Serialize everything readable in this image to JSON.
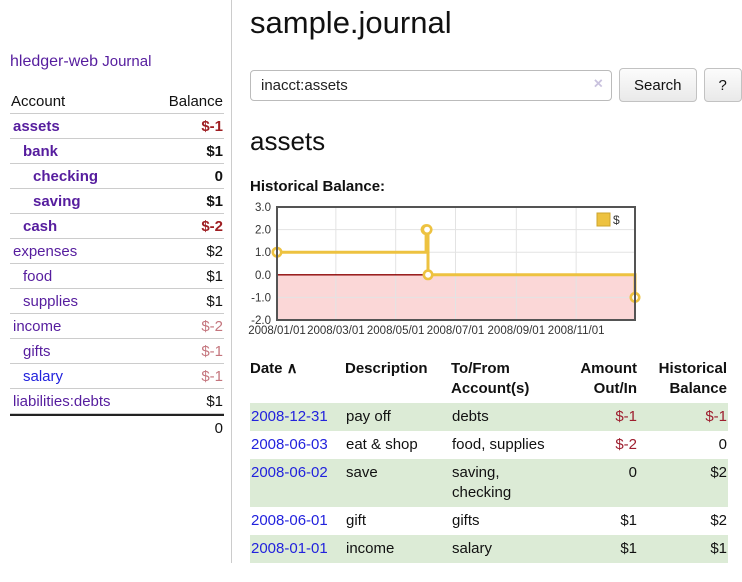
{
  "app": {
    "brand": "hledger-web"
  },
  "sidebar": {
    "journal_link": "Journal",
    "accounts_table": {
      "headers": {
        "account": "Account",
        "balance": "Balance"
      },
      "rows": [
        {
          "name": "assets",
          "level": 1,
          "bold": true,
          "balance": "$-1",
          "balance_style": "neg-strong"
        },
        {
          "name": "bank",
          "level": 2,
          "bold": true,
          "balance": "$1",
          "balance_style": "pos"
        },
        {
          "name": "checking",
          "level": 3,
          "bold": true,
          "balance": "0",
          "balance_style": "pos"
        },
        {
          "name": "saving",
          "level": 3,
          "bold": true,
          "balance": "$1",
          "balance_style": "pos"
        },
        {
          "name": "cash",
          "level": 2,
          "bold": true,
          "balance": "$-2",
          "balance_style": "neg-strong"
        },
        {
          "name": "expenses",
          "level": 1,
          "bold": false,
          "balance": "$2",
          "balance_style": "pos"
        },
        {
          "name": "food",
          "level": 2,
          "bold": false,
          "balance": "$1",
          "balance_style": "pos"
        },
        {
          "name": "supplies",
          "level": 2,
          "bold": false,
          "balance": "$1",
          "balance_style": "pos"
        },
        {
          "name": "income",
          "level": 1,
          "bold": false,
          "balance": "$-2",
          "balance_style": "neg-weak"
        },
        {
          "name": "gifts",
          "level": 2,
          "bold": false,
          "balance": "$-1",
          "balance_style": "neg-weak"
        },
        {
          "name": "salary",
          "level": 2,
          "bold": false,
          "balance": "$-1",
          "balance_style": "neg-weak",
          "link_style": "blue"
        },
        {
          "name": "liabilities:debts",
          "level": 1,
          "bold": false,
          "balance": "$1",
          "balance_style": "pos"
        }
      ],
      "total": "0"
    }
  },
  "header": {
    "title": "sample.journal"
  },
  "search": {
    "value": "inacct:assets",
    "clear_icon": "×",
    "button_label": "Search",
    "help_label": "?"
  },
  "account_page": {
    "title": "assets",
    "chart_label": "Historical Balance:"
  },
  "chart_data": {
    "type": "line",
    "title": "Historical Balance:",
    "step": true,
    "series": [
      {
        "name": "$",
        "color": "#edc240",
        "points": [
          [
            "2008-01-01",
            1
          ],
          [
            "2008-06-01",
            2
          ],
          [
            "2008-06-02",
            2
          ],
          [
            "2008-06-03",
            0
          ],
          [
            "2008-12-31",
            -1
          ]
        ]
      }
    ],
    "xlim": [
      "2008-01-01",
      "2008-12-31"
    ],
    "ylim": [
      -2,
      3
    ],
    "ytick_labels": [
      "3.0",
      "2.0",
      "1.0",
      "0.0",
      "-1.0",
      "-2.0"
    ],
    "yticks": [
      3,
      2,
      1,
      0,
      -1,
      -2
    ],
    "xtick_labels": [
      "2008/01/01",
      "2008/03/01",
      "2008/05/01",
      "2008/07/01",
      "2008/09/01",
      "2008/11/01"
    ],
    "legend": {
      "position": "top-right",
      "entries": [
        {
          "label": "$",
          "color": "#edc240"
        }
      ]
    },
    "grid": true,
    "negative_region_color": "#fbd7d7",
    "zero_line_color": "#8b0000",
    "border_color": "#545454"
  },
  "register_table": {
    "headers": [
      {
        "id": "date",
        "lines": [
          "Date"
        ],
        "align": "left",
        "sort": "∧",
        "sortable": true
      },
      {
        "id": "description",
        "lines": [
          "Description"
        ],
        "align": "left"
      },
      {
        "id": "accounts",
        "lines": [
          "To/From",
          "Account(s)"
        ],
        "align": "left"
      },
      {
        "id": "amount",
        "lines": [
          "Amount",
          "Out/In"
        ],
        "align": "right"
      },
      {
        "id": "balance",
        "lines": [
          "Historical",
          "Balance"
        ],
        "align": "right"
      }
    ],
    "rows": [
      {
        "date": "2008-12-31",
        "description": "pay off",
        "accounts": "debts",
        "amount": "$-1",
        "amount_neg": true,
        "balance": "$-1",
        "balance_neg": true,
        "striped": true
      },
      {
        "date": "2008-06-03",
        "description": "eat & shop",
        "accounts": "food, supplies",
        "amount": "$-2",
        "amount_neg": true,
        "balance": "0",
        "balance_neg": false,
        "striped": false
      },
      {
        "date": "2008-06-02",
        "description": "save",
        "accounts": "saving, checking",
        "amount": "0",
        "amount_neg": false,
        "balance": "$2",
        "balance_neg": false,
        "striped": true
      },
      {
        "date": "2008-06-01",
        "description": "gift",
        "accounts": "gifts",
        "amount": "$1",
        "amount_neg": false,
        "balance": "$2",
        "balance_neg": false,
        "striped": false
      },
      {
        "date": "2008-01-01",
        "description": "income",
        "accounts": "salary",
        "amount": "$1",
        "amount_neg": false,
        "balance": "$1",
        "balance_neg": false,
        "striped": true
      }
    ]
  },
  "colors": {
    "link_purple": "#561d9e",
    "link_blue": "#2222dd",
    "negative_strong": "#9e1e22",
    "negative_weak": "#c4757d",
    "row_stripe_green": "#dcebd6",
    "series_gold": "#edc240"
  }
}
